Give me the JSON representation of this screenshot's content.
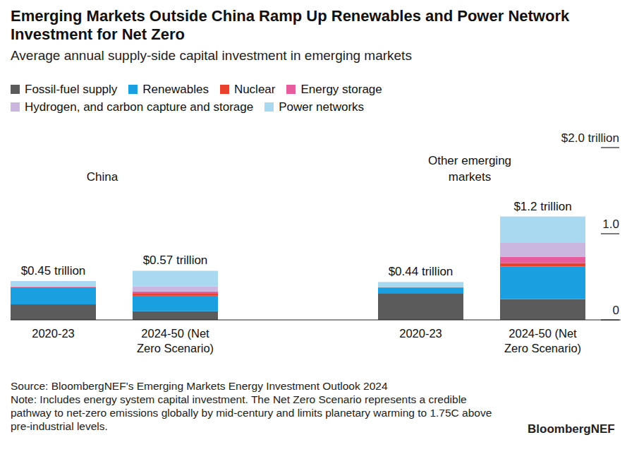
{
  "chart_data": {
    "type": "bar",
    "stacked": true,
    "title": "Emerging Markets Outside China Ramp Up Renewables and Power Network Investment for Net Zero",
    "subtitle": "Average annual supply-side capital investment in emerging markets",
    "groups": [
      "China",
      "Other emerging markets"
    ],
    "categories": [
      "2020-23",
      "2024-50 (Net Zero Scenario)",
      "2020-23",
      "2024-50 (Net Zero Scenario)"
    ],
    "series": [
      {
        "name": "Fossil-fuel supply",
        "color": "#5b5b5b",
        "values": [
          0.18,
          0.1,
          0.31,
          0.24
        ]
      },
      {
        "name": "Renewables",
        "color": "#1a9fe0",
        "values": [
          0.19,
          0.18,
          0.065,
          0.38
        ]
      },
      {
        "name": "Nuclear",
        "color": "#e8412c",
        "values": [
          0.01,
          0.03,
          0.005,
          0.04
        ]
      },
      {
        "name": "Energy storage",
        "color": "#e65c9c",
        "values": [
          0.005,
          0.02,
          0,
          0.07
        ]
      },
      {
        "name": "Hydrogen, and carbon capture and storage",
        "color": "#cbb6e0",
        "values": [
          0.005,
          0.06,
          0,
          0.17
        ]
      },
      {
        "name": "Power networks",
        "color": "#a9d8f1",
        "values": [
          0.06,
          0.18,
          0.06,
          0.3
        ]
      }
    ],
    "totals": [
      0.45,
      0.57,
      0.44,
      1.2
    ],
    "total_labels": [
      "$0.45 trillion",
      "$0.57 trillion",
      "$0.44 trillion",
      "$1.2 trillion"
    ],
    "ylim": [
      0,
      2
    ],
    "yticks": [
      0,
      {
        "value": 1,
        "label": "1.0"
      },
      {
        "value": 2,
        "label": "$2.0 trillion"
      }
    ],
    "grid": false,
    "legend": "top",
    "source": "Source: BloombergNEF's Emerging Markets Energy Investment Outlook 2024",
    "note": "Note: Includes energy system capital investment. The Net Zero Scenario represents a credible pathway to net-zero emissions globally by mid-century and limits planetary warming to 1.75C above pre-industrial levels.",
    "logo": "BloombergNEF"
  }
}
